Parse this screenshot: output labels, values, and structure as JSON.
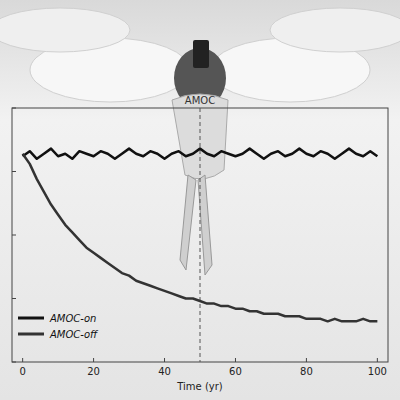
{
  "chart_data": {
    "type": "line",
    "xlabel": "Time (yr)",
    "annotations": [
      {
        "text": "AMOC",
        "x": 50
      }
    ],
    "x": [
      0,
      2,
      4,
      6,
      8,
      10,
      12,
      14,
      16,
      18,
      20,
      22,
      24,
      26,
      28,
      30,
      32,
      34,
      36,
      38,
      40,
      42,
      44,
      46,
      48,
      50,
      52,
      54,
      56,
      58,
      60,
      62,
      64,
      66,
      68,
      70,
      72,
      74,
      76,
      78,
      80,
      82,
      84,
      86,
      88,
      90,
      92,
      94,
      96,
      98,
      100
    ],
    "series": [
      {
        "name": "AMOC-on",
        "color": "#111111",
        "values": [
          0.81,
          0.83,
          0.8,
          0.82,
          0.84,
          0.81,
          0.82,
          0.8,
          0.83,
          0.82,
          0.81,
          0.83,
          0.82,
          0.8,
          0.82,
          0.84,
          0.82,
          0.81,
          0.83,
          0.82,
          0.8,
          0.82,
          0.83,
          0.81,
          0.82,
          0.84,
          0.82,
          0.81,
          0.83,
          0.82,
          0.81,
          0.82,
          0.84,
          0.82,
          0.8,
          0.82,
          0.83,
          0.81,
          0.82,
          0.84,
          0.82,
          0.81,
          0.83,
          0.82,
          0.8,
          0.82,
          0.84,
          0.82,
          0.81,
          0.83,
          0.81
        ]
      },
      {
        "name": "AMOC-off",
        "color": "#333333",
        "values": [
          0.82,
          0.78,
          0.72,
          0.67,
          0.62,
          0.58,
          0.54,
          0.51,
          0.48,
          0.45,
          0.43,
          0.41,
          0.39,
          0.37,
          0.35,
          0.34,
          0.32,
          0.31,
          0.3,
          0.29,
          0.28,
          0.27,
          0.26,
          0.25,
          0.25,
          0.24,
          0.23,
          0.23,
          0.22,
          0.22,
          0.21,
          0.21,
          0.2,
          0.2,
          0.19,
          0.19,
          0.19,
          0.18,
          0.18,
          0.18,
          0.17,
          0.17,
          0.17,
          0.16,
          0.17,
          0.16,
          0.16,
          0.16,
          0.17,
          0.16,
          0.16
        ]
      }
    ],
    "xlim": [
      -3,
      103
    ],
    "xticks": [
      0,
      20,
      40,
      60,
      80,
      100
    ],
    "ylim": [
      0,
      1
    ],
    "yticks": [
      0,
      0.25,
      0.5,
      0.75,
      1
    ],
    "tick_labels": "x",
    "legend": "lower left",
    "grid": false
  }
}
